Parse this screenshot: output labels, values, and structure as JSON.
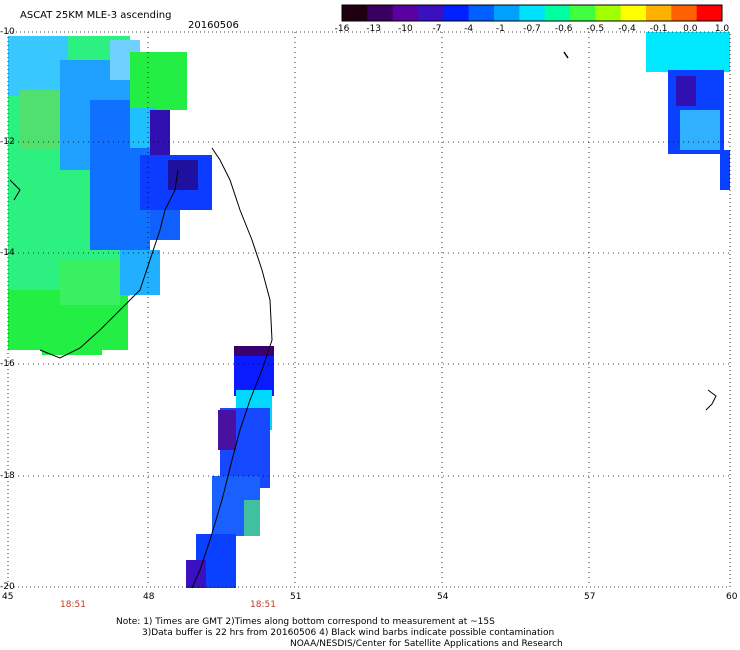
{
  "header": {
    "product": "ASCAT 25KM MLE-3 ascending",
    "date": "20160506"
  },
  "colorbar": {
    "labels": [
      "-16",
      "-13",
      "-10",
      "-7",
      "-4",
      "-1",
      "-0.7",
      "-0.6",
      "-0.5",
      "-0.4",
      "-0.1",
      "0.0",
      "1.0"
    ],
    "colors": [
      "#200010",
      "#3a0060",
      "#5a00a0",
      "#3a10c0",
      "#0020ff",
      "#0060ff",
      "#00a0ff",
      "#00e0ff",
      "#00ffa0",
      "#40ff40",
      "#a0ff00",
      "#ffff00",
      "#ffb000",
      "#ff6000",
      "#ff0000"
    ]
  },
  "axes": {
    "lat_labels": [
      "-10",
      "-12",
      "-14",
      "-16",
      "-18",
      "-20"
    ],
    "lon_labels": [
      "45",
      "48",
      "51",
      "54",
      "57",
      "60"
    ]
  },
  "times": [
    "18:51",
    "18:51"
  ],
  "footer": {
    "line1": "Note: 1) Times are GMT 2)Times along bottom correspond to measurement at ~15S",
    "line2": "3)Data buffer is 22 hrs from 20160506 4) Black wind barbs indicate possible contamination",
    "line3": "NOAA/NESDIS/Center for Satellite Applications and Research"
  }
}
